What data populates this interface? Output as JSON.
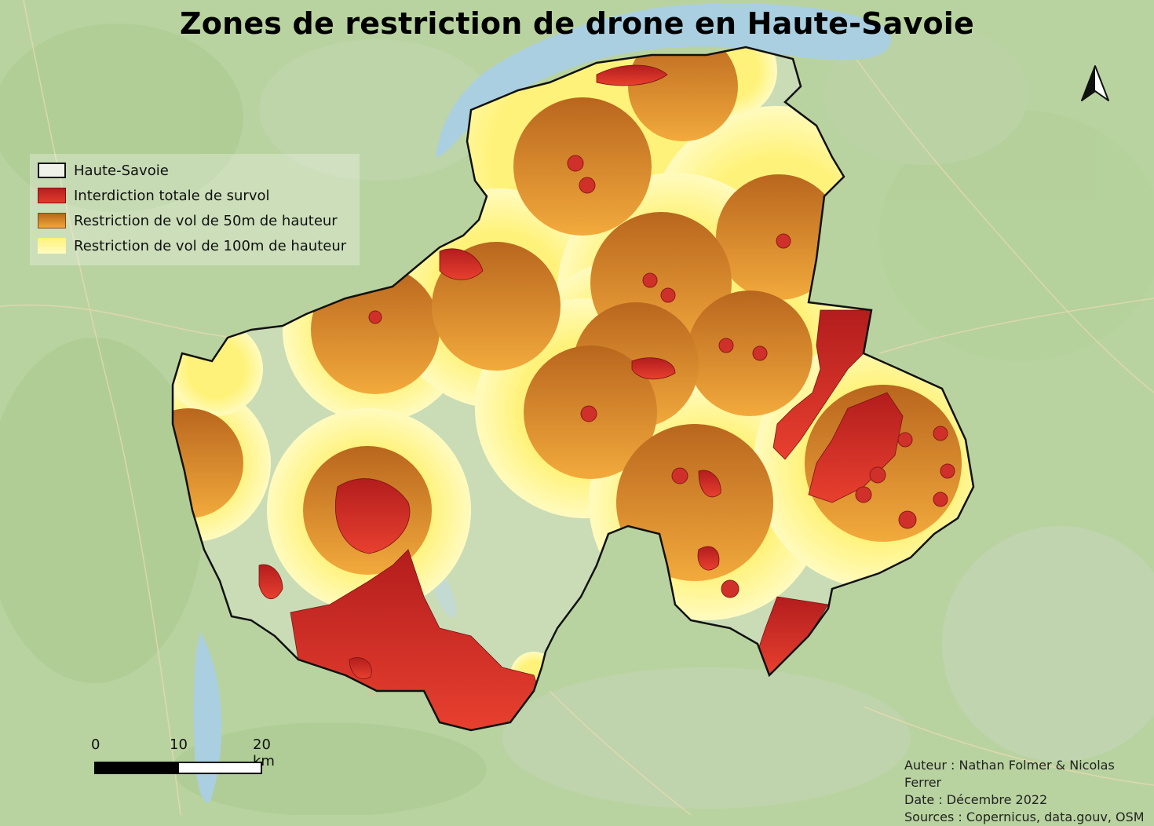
{
  "title": "Zones de restriction de drone en Haute-Savoie",
  "legend": {
    "items": [
      {
        "label": "Haute-Savoie",
        "color": "#ffffff"
      },
      {
        "label": "Interdiction totale de survol",
        "color": "#c9281f"
      },
      {
        "label": "Restriction de vol de 50m de hauteur",
        "color": "#d7852a"
      },
      {
        "label": "Restriction de vol de 100m de hauteur",
        "color": "#fff46a"
      }
    ]
  },
  "scale_bar": {
    "labels": [
      "0",
      "10",
      "20 km"
    ]
  },
  "credits": {
    "author": "Auteur : Nathan Folmer & Nicolas Ferrer",
    "date": "Date : Décembre 2022",
    "sources": "Sources : Copernicus, data.gouv, OSM"
  },
  "icons": {
    "north_arrow": "north-arrow-icon"
  },
  "colors": {
    "lake": "#a9cfe0",
    "terrain": "#b9d3a0",
    "interdiction": "#c9281f",
    "restriction_50m": "#d7852a",
    "restriction_100m": "#fff46a"
  }
}
